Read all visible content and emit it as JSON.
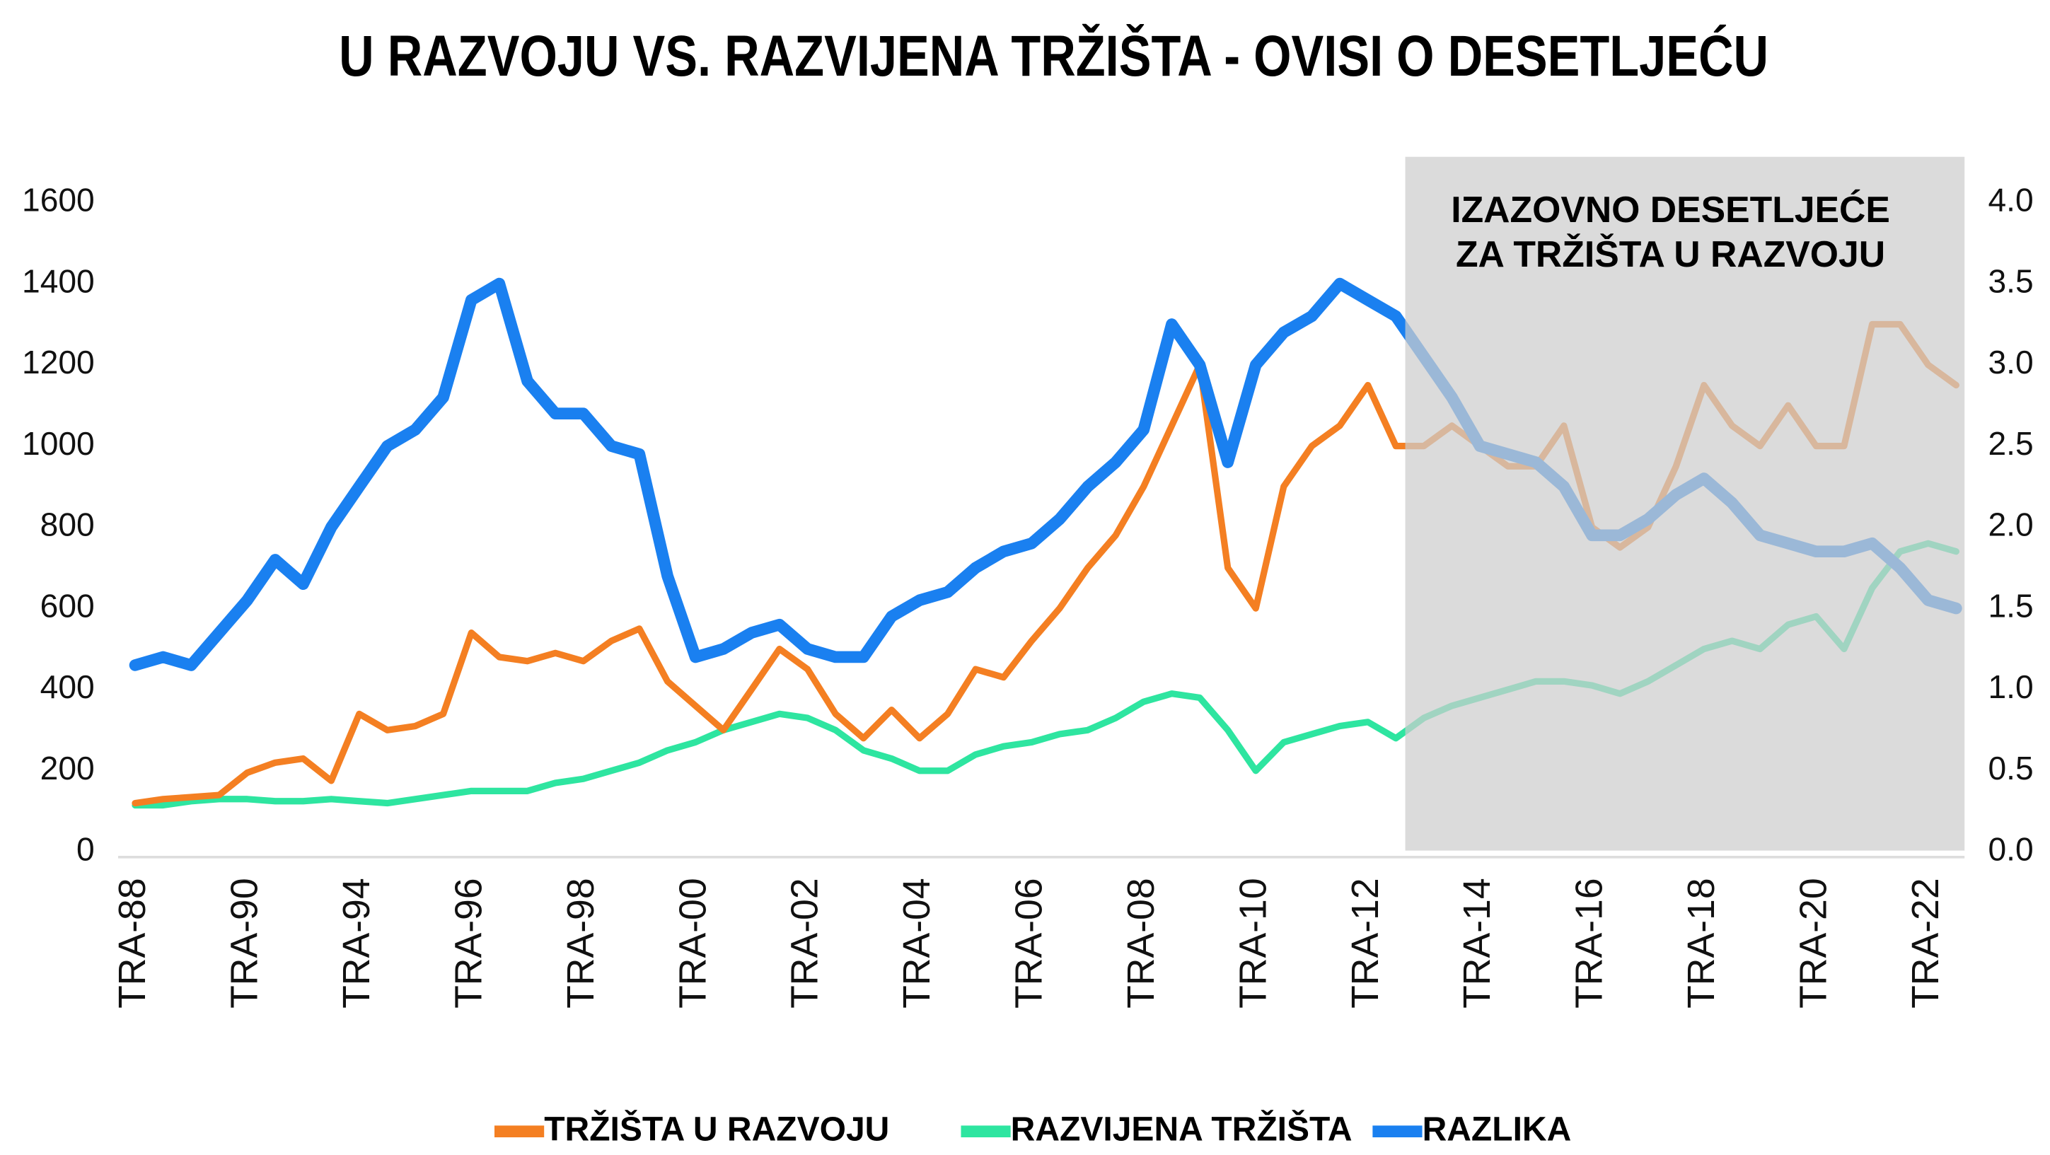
{
  "chart_data": {
    "type": "line",
    "title": "U RAZVOJU VS. RAZVIJENA TRŽIŠTA - OVISI O DESETLJEĆU",
    "annotation": [
      "IZAZOVNO DESETLJEĆE",
      "ZA TRŽIŠTA U RAZVOJU"
    ],
    "categories": [
      "TRA-88",
      null,
      null,
      null,
      "TRA-90",
      null,
      null,
      null,
      "TRA-94",
      null,
      null,
      null,
      "TRA-96",
      null,
      null,
      null,
      "TRA-98",
      null,
      null,
      null,
      "TRA-00",
      null,
      null,
      null,
      "TRA-02",
      null,
      null,
      null,
      "TRA-04",
      null,
      null,
      null,
      "TRA-06",
      null,
      null,
      null,
      "TRA-08",
      null,
      null,
      null,
      "TRA-10",
      null,
      null,
      null,
      "TRA-12",
      null,
      null,
      null,
      "TRA-14",
      null,
      null,
      null,
      "TRA-16",
      null,
      null,
      null,
      "TRA-18",
      null,
      null,
      null,
      "TRA-20",
      null,
      null,
      null,
      "TRA-22",
      null
    ],
    "series": [
      {
        "name": "TRŽIŠTA U RAZVOJU",
        "color": "#f47f22",
        "values": [
          120,
          130,
          135,
          140,
          195,
          220,
          230,
          175,
          340,
          300,
          310,
          340,
          540,
          480,
          470,
          490,
          470,
          520,
          550,
          420,
          360,
          300,
          400,
          500,
          450,
          340,
          280,
          350,
          280,
          340,
          450,
          430,
          520,
          600,
          700,
          780,
          900,
          1050,
          1200,
          700,
          600,
          900,
          1000,
          1050,
          1150,
          1000,
          1000,
          1050,
          1000,
          950,
          950,
          1050,
          800,
          750,
          800,
          950,
          1150,
          1050,
          1000,
          1100,
          1000,
          1000,
          1300,
          1300,
          1200,
          1150
        ]
      },
      {
        "name": "RAZVIJENA TRŽIŠTA",
        "color": "#2ee5a0",
        "values": [
          115,
          115,
          125,
          130,
          130,
          125,
          125,
          130,
          125,
          120,
          130,
          140,
          150,
          150,
          150,
          170,
          180,
          200,
          220,
          250,
          270,
          300,
          320,
          340,
          330,
          300,
          250,
          230,
          200,
          200,
          240,
          260,
          270,
          290,
          300,
          330,
          370,
          390,
          380,
          300,
          200,
          270,
          290,
          310,
          320,
          280,
          330,
          360,
          380,
          400,
          420,
          420,
          410,
          390,
          420,
          460,
          500,
          520,
          500,
          560,
          580,
          500,
          650,
          740,
          760,
          740
        ]
      },
      {
        "name": "RAZLIKA",
        "color": "#1a80f0",
        "axis": "y2",
        "values": [
          1.15,
          1.2,
          1.15,
          1.35,
          1.55,
          1.8,
          1.65,
          2.0,
          2.25,
          2.5,
          2.6,
          2.8,
          3.4,
          3.5,
          2.9,
          2.7,
          2.7,
          2.5,
          2.45,
          1.7,
          1.2,
          1.25,
          1.35,
          1.4,
          1.25,
          1.2,
          1.2,
          1.45,
          1.55,
          1.6,
          1.75,
          1.85,
          1.9,
          2.05,
          2.25,
          2.4,
          2.6,
          3.25,
          3.0,
          2.4,
          3.0,
          3.2,
          3.3,
          3.5,
          3.4,
          3.3,
          3.05,
          2.8,
          2.5,
          2.45,
          2.4,
          2.25,
          1.95,
          1.95,
          2.05,
          2.2,
          2.3,
          2.15,
          1.95,
          1.9,
          1.85,
          1.85,
          1.9,
          1.75,
          1.55,
          1.5
        ]
      }
    ],
    "ylim": [
      0,
      1600
    ],
    "yticks": [
      0,
      200,
      400,
      600,
      800,
      1000,
      1200,
      1400,
      1600
    ],
    "y2lim": [
      0,
      4
    ],
    "y2ticks": [
      {
        "value": 0,
        "label": "0.0"
      },
      0.5,
      {
        "value": 1,
        "label": "1.0"
      },
      1.5,
      {
        "value": 2,
        "label": "2.0"
      },
      2.5,
      {
        "value": 3,
        "label": "3.0"
      },
      3.5,
      {
        "value": 4,
        "label": "4.0"
      }
    ],
    "grid": false,
    "legend": "bottom"
  }
}
